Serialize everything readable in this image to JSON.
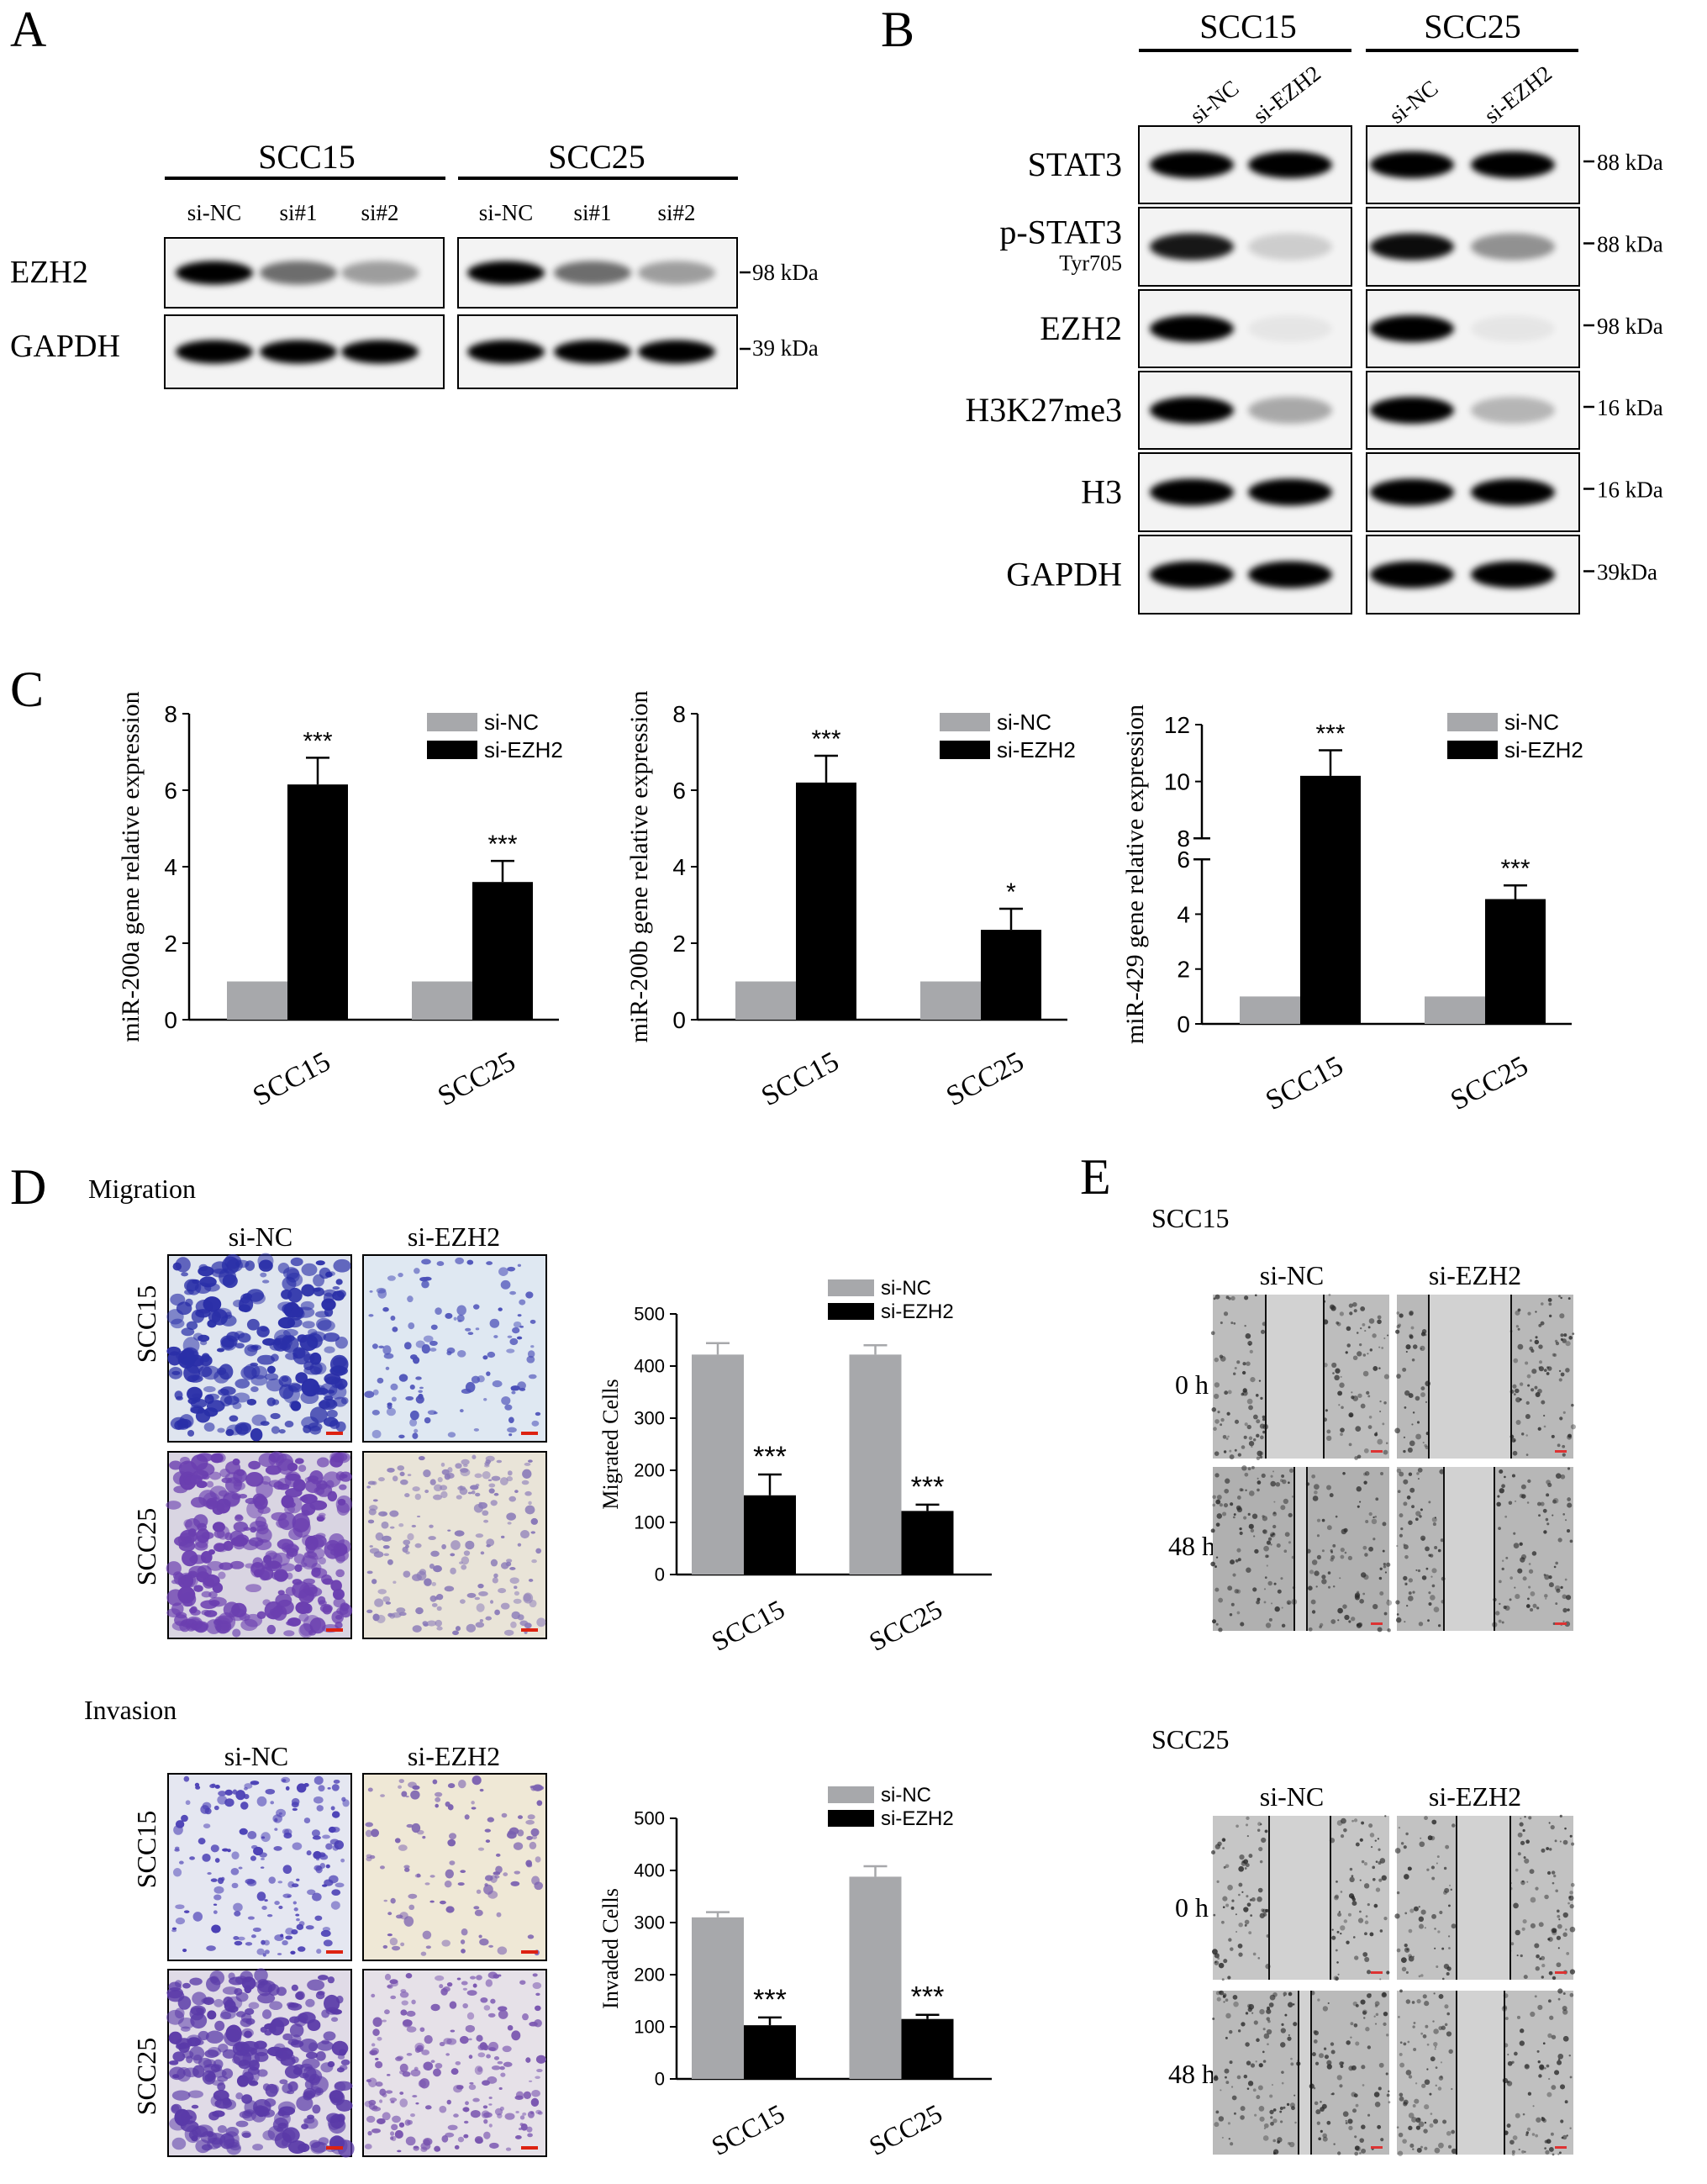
{
  "panels": {
    "A": {
      "letter": "A",
      "groups": [
        "SCC15",
        "SCC25"
      ],
      "lanes": [
        "si-NC",
        "si#1",
        "si#2"
      ],
      "rows": [
        {
          "name": "EZH2",
          "marker": "98 kDa",
          "intensity": [
            [
              1.0,
              0.55,
              0.35
            ],
            [
              1.0,
              0.55,
              0.35
            ]
          ]
        },
        {
          "name": "GAPDH",
          "marker": "39 kDa",
          "intensity": [
            [
              1.0,
              1.0,
              1.0
            ],
            [
              1.0,
              1.0,
              1.0
            ]
          ]
        }
      ]
    },
    "B": {
      "letter": "B",
      "groups": [
        "SCC15",
        "SCC25"
      ],
      "lanes": [
        "si-NC",
        "si-EZH2"
      ],
      "rows": [
        {
          "name": "STAT3",
          "sub": "",
          "marker": "88 kDa",
          "intensity": [
            [
              1.0,
              1.0
            ],
            [
              1.0,
              1.0
            ]
          ]
        },
        {
          "name": "p-STAT3",
          "sub": "Tyr705",
          "marker": "88 kDa",
          "intensity": [
            [
              0.9,
              0.15
            ],
            [
              0.95,
              0.4
            ]
          ]
        },
        {
          "name": "EZH2",
          "sub": "",
          "marker": "98 kDa",
          "intensity": [
            [
              1.0,
              0.05
            ],
            [
              1.0,
              0.05
            ]
          ]
        },
        {
          "name": "H3K27me3",
          "sub": "",
          "marker": "16 kDa",
          "intensity": [
            [
              1.0,
              0.3
            ],
            [
              1.0,
              0.25
            ]
          ]
        },
        {
          "name": "H3",
          "sub": "",
          "marker": "16 kDa",
          "intensity": [
            [
              1.0,
              1.0
            ],
            [
              1.0,
              1.0
            ]
          ]
        },
        {
          "name": "GAPDH",
          "sub": "",
          "marker": "39kDa",
          "intensity": [
            [
              1.0,
              1.0
            ],
            [
              1.0,
              1.0
            ]
          ]
        }
      ]
    },
    "C": {
      "letter": "C",
      "legend": [
        "si-NC",
        "si-EZH2"
      ]
    },
    "D": {
      "letter": "D",
      "migration_title": "Migration",
      "invasion_title": "Invasion",
      "columns": [
        "si-NC",
        "si-EZH2"
      ],
      "rows": [
        "SCC15",
        "SCC25"
      ],
      "legend": [
        "si-NC",
        "si-EZH2"
      ]
    },
    "E": {
      "letter": "E",
      "blocks": [
        {
          "title": "SCC15",
          "columns": [
            "si-NC",
            "si-EZH2"
          ],
          "rows": [
            "0 h",
            "48 h"
          ]
        },
        {
          "title": "SCC25",
          "columns": [
            "si-NC",
            "si-EZH2"
          ],
          "rows": [
            "0 h",
            "48 h"
          ]
        }
      ]
    }
  },
  "colors": {
    "si_nc": "#a7a8ab",
    "si_ezh2": "#000000",
    "crystal_violet": "#3b2fa0"
  },
  "chart_data": [
    {
      "type": "bar",
      "panel": "C",
      "categories": [
        "SCC15",
        "SCC25"
      ],
      "series": [
        {
          "name": "si-NC",
          "values": [
            1,
            1
          ],
          "errors": [
            0,
            0
          ]
        },
        {
          "name": "si-EZH2",
          "values": [
            6.15,
            3.6
          ],
          "errors": [
            0.7,
            0.55
          ]
        }
      ],
      "significance": [
        "***",
        "***"
      ],
      "ylabel": "miR-200a gene relative expression",
      "ylim": [
        0,
        8
      ],
      "yticks": [
        0,
        2,
        4,
        6,
        8
      ],
      "legend": "top-right"
    },
    {
      "type": "bar",
      "panel": "C",
      "categories": [
        "SCC15",
        "SCC25"
      ],
      "series": [
        {
          "name": "si-NC",
          "values": [
            1,
            1
          ],
          "errors": [
            0,
            0
          ]
        },
        {
          "name": "si-EZH2",
          "values": [
            6.2,
            2.35
          ],
          "errors": [
            0.7,
            0.55
          ]
        }
      ],
      "significance": [
        "***",
        "*"
      ],
      "ylabel": "miR-200b gene relative expression",
      "ylim": [
        0,
        8
      ],
      "yticks": [
        0,
        2,
        4,
        6,
        8
      ],
      "legend": "top-right"
    },
    {
      "type": "bar",
      "panel": "C",
      "categories": [
        "SCC15",
        "SCC25"
      ],
      "series": [
        {
          "name": "si-NC",
          "values": [
            1,
            1
          ],
          "errors": [
            0,
            0
          ]
        },
        {
          "name": "si-EZH2",
          "values": [
            10.2,
            4.55
          ],
          "errors": [
            0.9,
            0.5
          ]
        }
      ],
      "significance": [
        "***",
        "***"
      ],
      "ylabel": "miR-429 gene relative expression",
      "ylim": [
        0,
        12
      ],
      "axis_break": [
        6,
        8
      ],
      "yticks": [
        0,
        2,
        4,
        6,
        8,
        10,
        12
      ],
      "legend": "top-right"
    },
    {
      "type": "bar",
      "panel": "D",
      "categories": [
        "SCC15",
        "SCC25"
      ],
      "series": [
        {
          "name": "si-NC",
          "values": [
            422,
            422
          ],
          "errors": [
            22,
            18
          ]
        },
        {
          "name": "si-EZH2",
          "values": [
            152,
            122
          ],
          "errors": [
            40,
            12
          ]
        }
      ],
      "significance": [
        "***",
        "***"
      ],
      "ylabel": "Migrated Cells",
      "ylim": [
        0,
        500
      ],
      "yticks": [
        0,
        100,
        200,
        300,
        400,
        500
      ],
      "legend": "top-right"
    },
    {
      "type": "bar",
      "panel": "D",
      "categories": [
        "SCC15",
        "SCC25"
      ],
      "series": [
        {
          "name": "si-NC",
          "values": [
            310,
            388
          ],
          "errors": [
            10,
            20
          ]
        },
        {
          "name": "si-EZH2",
          "values": [
            103,
            115
          ],
          "errors": [
            15,
            8
          ]
        }
      ],
      "significance": [
        "***",
        "***"
      ],
      "ylabel": "Invaded Cells",
      "ylim": [
        0,
        500
      ],
      "yticks": [
        0,
        100,
        200,
        300,
        400,
        500
      ],
      "legend": "top-right"
    }
  ]
}
